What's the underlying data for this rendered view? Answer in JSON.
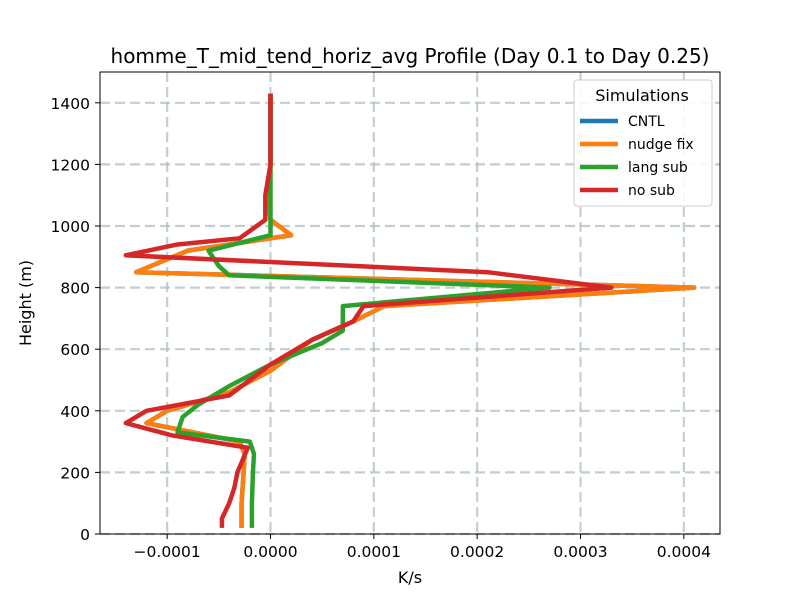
{
  "chart_data": {
    "type": "line",
    "title": "homme_T_mid_tend_horiz_avg Profile (Day 0.1 to Day 0.25)",
    "xlabel": "K/s",
    "ylabel": "Height (m)",
    "xlim": [
      -0.000165,
      0.000435
    ],
    "ylim": [
      0,
      1500
    ],
    "xticks": [
      -0.0001,
      0.0,
      0.0001,
      0.0002,
      0.0003,
      0.0004
    ],
    "xtick_labels": [
      "−0.0001",
      "0.0000",
      "0.0001",
      "0.0002",
      "0.0003",
      "0.0004"
    ],
    "yticks": [
      0,
      200,
      400,
      600,
      800,
      1000,
      1200,
      1400
    ],
    "ytick_labels": [
      "0",
      "200",
      "400",
      "600",
      "800",
      "1000",
      "1200",
      "1400"
    ],
    "grid": true,
    "legend": {
      "title": "Simulations",
      "placement": "top-right",
      "entries": [
        "CNTL",
        "nudge fix",
        "lang sub",
        "no sub"
      ]
    },
    "series": [
      {
        "name": "CNTL",
        "color": "#1f77b4",
        "points": [
          [
            -2.8e-05,
            20
          ],
          [
            -2.8e-05,
            100
          ],
          [
            -2.6e-05,
            200
          ],
          [
            -2.5e-05,
            260
          ],
          [
            -3e-05,
            300
          ],
          [
            -0.00012,
            360
          ],
          [
            -0.0001,
            400
          ],
          [
            -4e-05,
            460
          ],
          [
            0.0,
            530
          ],
          [
            4e-05,
            630
          ],
          [
            8e-05,
            690
          ],
          [
            0.00011,
            740
          ],
          [
            0.00041,
            800
          ],
          [
            -0.00013,
            850
          ],
          [
            -8e-05,
            920
          ],
          [
            2e-05,
            970
          ],
          [
            0.0,
            1020
          ],
          [
            -2e-06,
            1100
          ],
          [
            0.0,
            1200
          ],
          [
            0.0,
            1430
          ]
        ]
      },
      {
        "name": "nudge fix",
        "color": "#ff7f0e",
        "points": [
          [
            -2.8e-05,
            20
          ],
          [
            -2.8e-05,
            100
          ],
          [
            -2.6e-05,
            200
          ],
          [
            -2.5e-05,
            260
          ],
          [
            -3e-05,
            300
          ],
          [
            -0.00012,
            360
          ],
          [
            -0.0001,
            400
          ],
          [
            -4e-05,
            460
          ],
          [
            0.0,
            530
          ],
          [
            4e-05,
            630
          ],
          [
            8e-05,
            690
          ],
          [
            0.00011,
            740
          ],
          [
            0.00041,
            800
          ],
          [
            -0.00013,
            850
          ],
          [
            -8e-05,
            920
          ],
          [
            2e-05,
            970
          ],
          [
            0.0,
            1020
          ],
          [
            -2e-06,
            1100
          ],
          [
            0.0,
            1200
          ],
          [
            0.0,
            1430
          ]
        ]
      },
      {
        "name": "lang sub",
        "color": "#2ca02c",
        "points": [
          [
            -1.8e-05,
            20
          ],
          [
            -1.8e-05,
            100
          ],
          [
            -1.7e-05,
            200
          ],
          [
            -1.6e-05,
            260
          ],
          [
            -2e-05,
            300
          ],
          [
            -9e-05,
            330
          ],
          [
            -8.5e-05,
            380
          ],
          [
            -7e-05,
            420
          ],
          [
            -4e-05,
            480
          ],
          [
            0.0,
            550
          ],
          [
            5e-05,
            620
          ],
          [
            7e-05,
            660
          ],
          [
            7e-05,
            740
          ],
          [
            0.00027,
            800
          ],
          [
            -4e-05,
            840
          ],
          [
            -5e-05,
            870
          ],
          [
            -6e-05,
            920
          ],
          [
            0.0,
            970
          ],
          [
            0.0,
            1020
          ],
          [
            0.0,
            1100
          ],
          [
            0.0,
            1200
          ],
          [
            0.0,
            1430
          ]
        ]
      },
      {
        "name": "no sub",
        "color": "#d62728",
        "points": [
          [
            -4.7e-05,
            20
          ],
          [
            -4.7e-05,
            50
          ],
          [
            -4e-05,
            100
          ],
          [
            -3.5e-05,
            150
          ],
          [
            -3.2e-05,
            200
          ],
          [
            -2.2e-05,
            280
          ],
          [
            -9.5e-05,
            320
          ],
          [
            -0.00014,
            360
          ],
          [
            -0.00012,
            400
          ],
          [
            -4e-05,
            450
          ],
          [
            0.0,
            550
          ],
          [
            4e-05,
            630
          ],
          [
            8e-05,
            690
          ],
          [
            9e-05,
            740
          ],
          [
            0.00033,
            800
          ],
          [
            0.00021,
            850
          ],
          [
            -0.00014,
            905
          ],
          [
            -9e-05,
            940
          ],
          [
            -3e-05,
            960
          ],
          [
            -5e-06,
            1020
          ],
          [
            -5e-06,
            1100
          ],
          [
            0.0,
            1200
          ],
          [
            0.0,
            1430
          ]
        ]
      }
    ]
  }
}
